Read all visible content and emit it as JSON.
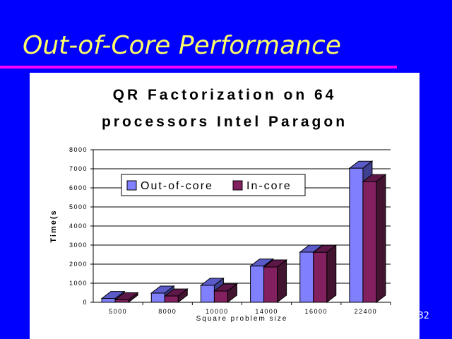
{
  "slide": {
    "title": "Out-of-Core Performance",
    "page_number": "32"
  },
  "colors": {
    "background": "#0000ff",
    "title": "#ffff66",
    "rule": "#ff00ff",
    "out_of_core": "#8080ff",
    "in_core": "#832060"
  },
  "chart_data": {
    "type": "bar",
    "title_line1": "QR Factorization on 64",
    "title_line2": "processors Intel Paragon",
    "xlabel": "Square problem size",
    "ylabel": "Time(s",
    "ylim": [
      0,
      8000
    ],
    "yticks": [
      "0",
      "1000",
      "2000",
      "3000",
      "4000",
      "5000",
      "6000",
      "7000",
      "8000"
    ],
    "categories": [
      "5000",
      "8000",
      "10000",
      "14000",
      "16000",
      "22400"
    ],
    "series": [
      {
        "name": "Out-of-core",
        "values": [
          200,
          480,
          890,
          1900,
          2630,
          7030
        ]
      },
      {
        "name": "In-core",
        "values": [
          130,
          330,
          590,
          1850,
          2620,
          6330
        ]
      }
    ],
    "grid": true,
    "legend": "top-left"
  }
}
